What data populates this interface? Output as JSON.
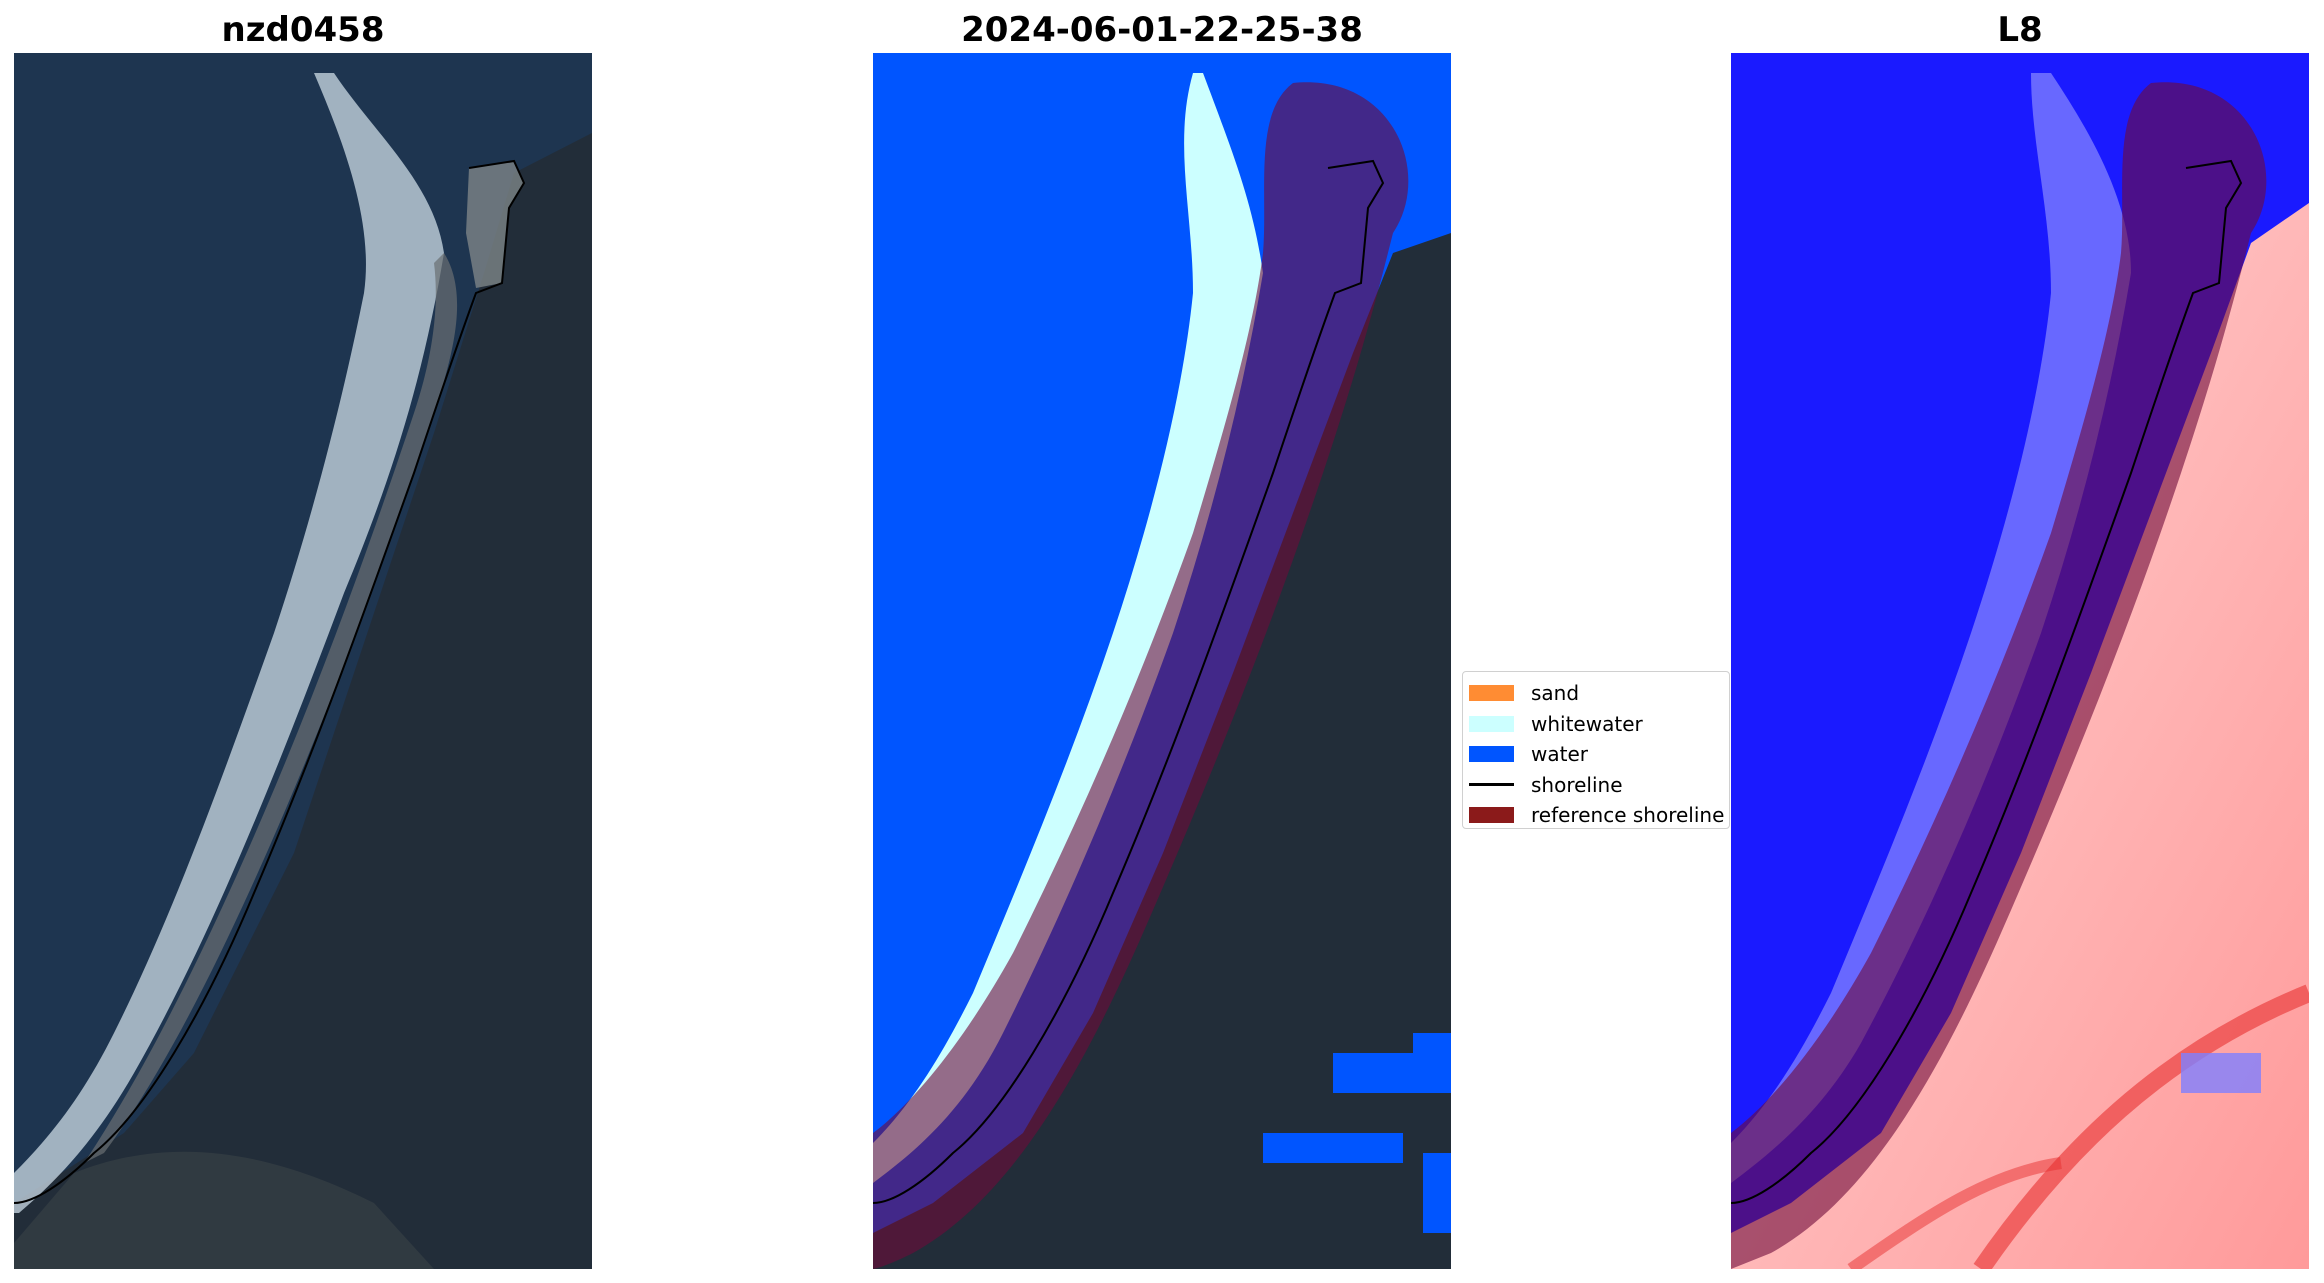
{
  "panels": [
    {
      "title": "nzd0458",
      "kind": "rgb"
    },
    {
      "title": "2024-06-01-22-25-38",
      "kind": "classification"
    },
    {
      "title": "L8",
      "kind": "index"
    }
  ],
  "legend": {
    "items": [
      {
        "label": "sand",
        "type": "patch",
        "color": "#ff8c33"
      },
      {
        "label": "whitewater",
        "type": "patch",
        "color": "#ccffff"
      },
      {
        "label": "water",
        "type": "patch",
        "color": "#0055ff"
      },
      {
        "label": "shoreline",
        "type": "line",
        "color": "#000000"
      },
      {
        "label": "reference shoreline",
        "type": "patch",
        "color": "#8b1a1a"
      }
    ]
  },
  "colors": {
    "ocean": "#1e3550",
    "land": "#202b38",
    "surf": "#c9d6e0",
    "water_class": "#0055ff",
    "whitewater_class": "#ccffff",
    "reference_band": "#6e0a3a",
    "index_water": "#1a1aff",
    "index_land": "#ffe0e0",
    "index_red": "#e83030"
  }
}
